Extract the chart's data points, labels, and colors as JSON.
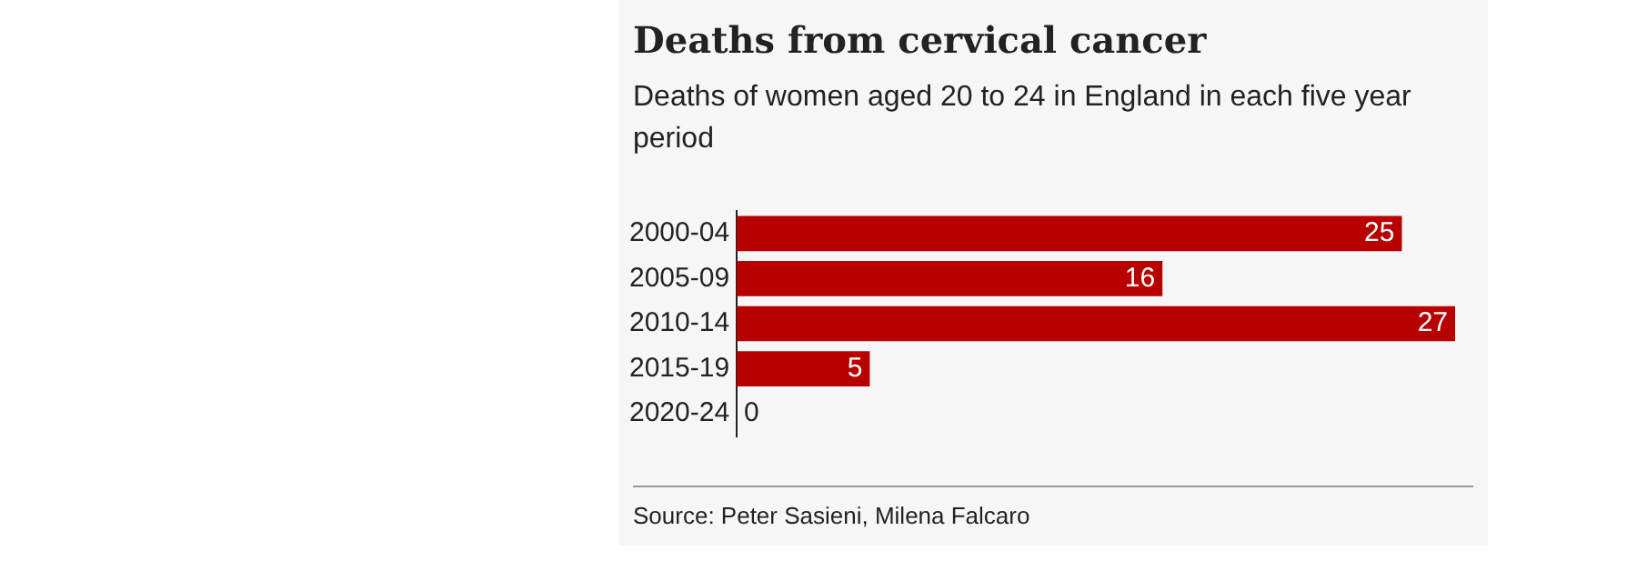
{
  "chart_data": {
    "type": "bar",
    "orientation": "horizontal",
    "title": "Deaths from cervical cancer",
    "subtitle": "Deaths of women aged 20 to 24 in England in each five year period",
    "categories": [
      "2000-04",
      "2005-09",
      "2010-14",
      "2015-19",
      "2020-24"
    ],
    "values": [
      25,
      16,
      27,
      5,
      0
    ],
    "color": "#b80000",
    "data_labels": true,
    "grid": false,
    "legend": false,
    "tick_labels": "y",
    "annotations": [
      "Source: Peter Sasieni, Milena Falcaro"
    ]
  }
}
